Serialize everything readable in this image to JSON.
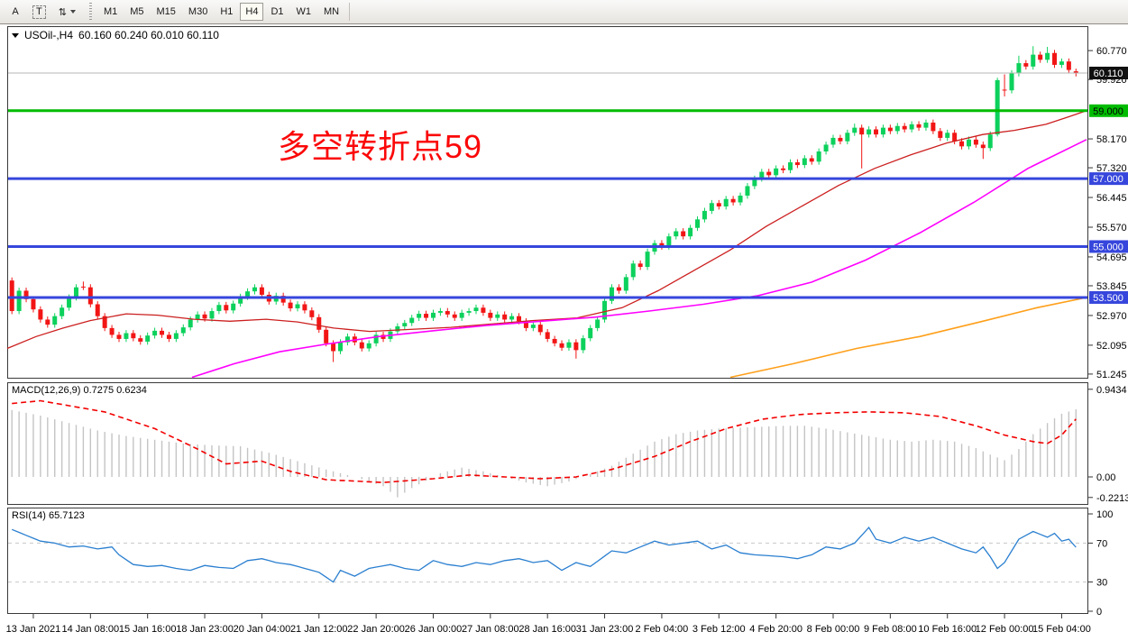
{
  "toolbar": {
    "tools": [
      {
        "id": "annotation-letter",
        "label": "A",
        "boxed": false
      },
      {
        "id": "text-label",
        "label": "T",
        "boxed": true
      },
      {
        "id": "object-arrange",
        "label": "⇅",
        "boxed": false,
        "caret": true
      }
    ],
    "timeframes": [
      "M1",
      "M5",
      "M15",
      "M30",
      "H1",
      "H4",
      "D1",
      "W1",
      "MN"
    ],
    "active_timeframe": "H4"
  },
  "chart": {
    "title": "USOil-,H4",
    "ohlc": "60.160 60.240 60.010 60.110"
  },
  "chart_data": {
    "type": "candlestick",
    "symbol": "USOil-",
    "timeframe": "H4",
    "annotation": {
      "text": "多空转折点59",
      "color": "#fb0808"
    },
    "colors": {
      "bull": "#0cd15c",
      "bear": "#f21515",
      "ma_fast": "#cc1f1f",
      "ma_mid": "#ff00ff",
      "ma_slow": "#ff9f1a",
      "level_blue": "#3646dc",
      "level_green": "#00bc00",
      "current_price_line": "#b6b6b6",
      "macd_hist": "#c4c4c4",
      "macd_signal": "#f20000",
      "rsi_line": "#2a7fd0",
      "rsi_levels": "#c8c8c8",
      "pane_border": "#3a3a3a"
    },
    "main_pane": {
      "ylim": [
        51.11,
        61.49
      ],
      "ticks": [
        "60.770",
        "59.920",
        "58.170",
        "57.320",
        "56.445",
        "55.570",
        "54.695",
        "53.845",
        "52.970",
        "52.095",
        "51.245"
      ],
      "badges": [
        {
          "text": "60.110",
          "price": 60.11,
          "bg": "#101010",
          "fg": "#ffffff"
        },
        {
          "text": "59.000",
          "price": 59.0,
          "bg": "#00bc00",
          "fg": "#000000"
        },
        {
          "text": "57.000",
          "price": 57.0,
          "bg": "#3646dc",
          "fg": "#ffffff"
        },
        {
          "text": "55.000",
          "price": 55.0,
          "bg": "#3646dc",
          "fg": "#ffffff"
        },
        {
          "text": "53.500",
          "price": 53.5,
          "bg": "#3646dc",
          "fg": "#ffffff"
        }
      ],
      "levels": [
        {
          "price": 60.11,
          "color": "#b6b6b6",
          "width": 1,
          "name": "current-price-line"
        },
        {
          "price": 59.0,
          "color": "#00bc00",
          "width": 3,
          "name": "level-59"
        },
        {
          "price": 57.0,
          "color": "#3646dc",
          "width": 3,
          "name": "level-57"
        },
        {
          "price": 55.0,
          "color": "#3646dc",
          "width": 3,
          "name": "level-55"
        },
        {
          "price": 53.5,
          "color": "#3646dc",
          "width": 3,
          "name": "level-53.5"
        }
      ]
    },
    "candles": {
      "first_open": 54.0,
      "default_wick": 0.09,
      "closes": [
        53.1,
        53.7,
        53.45,
        53.15,
        52.85,
        52.7,
        52.95,
        53.2,
        53.5,
        53.8,
        53.8,
        53.3,
        52.95,
        52.6,
        52.4,
        52.28,
        52.45,
        52.3,
        52.2,
        52.38,
        52.52,
        52.4,
        52.28,
        52.45,
        52.62,
        52.85,
        53.0,
        52.88,
        53.1,
        53.28,
        53.12,
        53.32,
        53.52,
        53.68,
        53.8,
        53.58,
        53.38,
        53.55,
        53.35,
        53.18,
        53.3,
        53.12,
        52.92,
        52.55,
        52.15,
        51.92,
        52.18,
        52.35,
        52.18,
        52.0,
        52.15,
        52.4,
        52.28,
        52.5,
        52.65,
        52.75,
        52.9,
        53.02,
        52.9,
        53.05,
        53.1,
        53.0,
        52.9,
        53.05,
        53.1,
        53.2,
        53.05,
        52.9,
        53.0,
        52.85,
        52.95,
        52.8,
        52.6,
        52.7,
        52.48,
        52.28,
        52.15,
        52.02,
        52.18,
        51.95,
        52.3,
        52.6,
        52.85,
        53.4,
        53.8,
        53.7,
        54.1,
        54.5,
        54.4,
        54.85,
        55.1,
        55.0,
        55.3,
        55.45,
        55.3,
        55.55,
        55.8,
        56.05,
        56.28,
        56.18,
        56.4,
        56.3,
        56.5,
        56.78,
        57.0,
        57.2,
        57.1,
        57.3,
        57.25,
        57.48,
        57.4,
        57.6,
        57.5,
        57.8,
        58.0,
        58.2,
        58.1,
        58.35,
        58.5,
        58.3,
        58.45,
        58.3,
        58.5,
        58.4,
        58.55,
        58.45,
        58.6,
        58.5,
        58.65,
        58.4,
        58.2,
        58.35,
        58.1,
        57.95,
        58.15,
        58.0,
        57.9,
        58.3,
        59.9,
        59.6,
        60.1,
        60.4,
        60.3,
        60.65,
        60.5,
        60.7,
        60.35,
        60.45,
        60.2,
        60.11
      ],
      "overrides": {
        "10": {
          "o": 53.82,
          "c": 53.8,
          "h": 53.97,
          "l": 53.72
        },
        "45": {
          "l": 51.6
        },
        "79": {
          "l": 51.7
        },
        "118": {
          "h": 58.62
        },
        "119": {
          "l": 57.3
        },
        "136": {
          "l": 57.58
        },
        "138": {
          "o": 58.3,
          "h": 59.97,
          "l": 58.24
        },
        "139": {
          "o": 59.62,
          "c": 59.6,
          "h": 60.07,
          "l": 59.42
        },
        "141": {
          "h": 60.62
        },
        "143": {
          "h": 60.9
        },
        "145": {
          "h": 60.88
        },
        "149": {
          "o": 60.16,
          "h": 60.24,
          "l": 60.01,
          "c": 60.11
        }
      }
    },
    "moving_averages": [
      {
        "name": "ma-fast-red",
        "color": "#cc1f1f",
        "width": 1.3,
        "points": [
          [
            8,
            52.0
          ],
          [
            40,
            52.35
          ],
          [
            70,
            52.6
          ],
          [
            100,
            52.82
          ],
          [
            140,
            53.02
          ],
          [
            175,
            52.98
          ],
          [
            215,
            52.86
          ],
          [
            255,
            52.8
          ],
          [
            295,
            52.86
          ],
          [
            330,
            52.78
          ],
          [
            370,
            52.6
          ],
          [
            410,
            52.5
          ],
          [
            455,
            52.56
          ],
          [
            500,
            52.62
          ],
          [
            545,
            52.72
          ],
          [
            590,
            52.82
          ],
          [
            640,
            52.9
          ],
          [
            690,
            53.2
          ],
          [
            730,
            53.7
          ],
          [
            770,
            54.3
          ],
          [
            810,
            54.9
          ],
          [
            850,
            55.6
          ],
          [
            890,
            56.2
          ],
          [
            930,
            56.8
          ],
          [
            970,
            57.3
          ],
          [
            1010,
            57.7
          ],
          [
            1050,
            58.05
          ],
          [
            1090,
            58.3
          ],
          [
            1125,
            58.42
          ],
          [
            1160,
            58.6
          ],
          [
            1185,
            58.82
          ],
          [
            1205,
            59.0
          ]
        ]
      },
      {
        "name": "ma-mid-magenta",
        "color": "#ff00ff",
        "width": 1.6,
        "points": [
          [
            213,
            51.15
          ],
          [
            260,
            51.55
          ],
          [
            310,
            51.9
          ],
          [
            360,
            52.12
          ],
          [
            420,
            52.35
          ],
          [
            480,
            52.52
          ],
          [
            540,
            52.68
          ],
          [
            600,
            52.8
          ],
          [
            660,
            52.92
          ],
          [
            720,
            53.1
          ],
          [
            780,
            53.3
          ],
          [
            840,
            53.55
          ],
          [
            900,
            53.95
          ],
          [
            960,
            54.6
          ],
          [
            1020,
            55.4
          ],
          [
            1080,
            56.3
          ],
          [
            1140,
            57.3
          ],
          [
            1205,
            58.15
          ]
        ]
      },
      {
        "name": "ma-slow-orange",
        "color": "#ff9f1a",
        "width": 1.6,
        "points": [
          [
            810,
            51.15
          ],
          [
            880,
            51.55
          ],
          [
            950,
            52.0
          ],
          [
            1020,
            52.35
          ],
          [
            1090,
            52.8
          ],
          [
            1150,
            53.2
          ],
          [
            1205,
            53.5
          ]
        ]
      }
    ],
    "macd": {
      "label": "MACD(12,26,9) 0.7275 0.6234",
      "value_main": 0.7275,
      "value_signal": 0.6234,
      "ylim": [
        -0.301,
        1.019
      ],
      "ticks": [
        [
          "0.9434",
          0.9434
        ],
        [
          "0.00",
          0.0
        ],
        [
          "-0.2213",
          -0.2213
        ]
      ],
      "histogram_waypoints": [
        [
          0,
          0.72
        ],
        [
          4,
          0.66
        ],
        [
          8,
          0.58
        ],
        [
          12,
          0.5
        ],
        [
          16,
          0.44
        ],
        [
          20,
          0.4
        ],
        [
          24,
          0.36
        ],
        [
          28,
          0.34
        ],
        [
          32,
          0.33
        ],
        [
          36,
          0.26
        ],
        [
          40,
          0.17
        ],
        [
          44,
          0.08
        ],
        [
          48,
          0.0
        ],
        [
          52,
          -0.1
        ],
        [
          54,
          -0.22
        ],
        [
          56,
          -0.12
        ],
        [
          58,
          -0.04
        ],
        [
          60,
          0.04
        ],
        [
          63,
          0.1
        ],
        [
          66,
          0.06
        ],
        [
          69,
          0.0
        ],
        [
          72,
          -0.06
        ],
        [
          75,
          -0.1
        ],
        [
          78,
          -0.05
        ],
        [
          81,
          0.03
        ],
        [
          84,
          0.12
        ],
        [
          87,
          0.25
        ],
        [
          90,
          0.38
        ],
        [
          93,
          0.46
        ],
        [
          96,
          0.5
        ],
        [
          99,
          0.52
        ],
        [
          102,
          0.53
        ],
        [
          105,
          0.54
        ],
        [
          108,
          0.55
        ],
        [
          111,
          0.55
        ],
        [
          114,
          0.52
        ],
        [
          117,
          0.48
        ],
        [
          120,
          0.44
        ],
        [
          123,
          0.4
        ],
        [
          126,
          0.38
        ],
        [
          129,
          0.4
        ],
        [
          132,
          0.38
        ],
        [
          135,
          0.31
        ],
        [
          137,
          0.24
        ],
        [
          139,
          0.18
        ],
        [
          141,
          0.3
        ],
        [
          143,
          0.46
        ],
        [
          145,
          0.58
        ],
        [
          147,
          0.68
        ],
        [
          149,
          0.7275
        ]
      ],
      "signal_waypoints": [
        [
          0,
          0.79
        ],
        [
          4,
          0.82
        ],
        [
          13,
          0.7
        ],
        [
          20,
          0.52
        ],
        [
          26,
          0.3
        ],
        [
          30,
          0.14
        ],
        [
          35,
          0.17
        ],
        [
          39,
          0.06
        ],
        [
          44,
          -0.03
        ],
        [
          52,
          -0.06
        ],
        [
          59,
          -0.02
        ],
        [
          64,
          0.02
        ],
        [
          69,
          0.0
        ],
        [
          74,
          -0.02
        ],
        [
          79,
          0.0
        ],
        [
          84,
          0.08
        ],
        [
          90,
          0.22
        ],
        [
          95,
          0.38
        ],
        [
          100,
          0.52
        ],
        [
          105,
          0.62
        ],
        [
          110,
          0.67
        ],
        [
          115,
          0.69
        ],
        [
          120,
          0.7
        ],
        [
          125,
          0.69
        ],
        [
          130,
          0.65
        ],
        [
          135,
          0.55
        ],
        [
          139,
          0.45
        ],
        [
          143,
          0.38
        ],
        [
          145,
          0.36
        ],
        [
          147,
          0.45
        ],
        [
          149,
          0.6234
        ]
      ]
    },
    "rsi": {
      "label": "RSI(14) 65.7123",
      "value": 65.7123,
      "ylim": [
        -2.8,
        106.5
      ],
      "ticks": [
        [
          "100",
          100
        ],
        [
          "70",
          70
        ],
        [
          "30",
          30
        ],
        [
          "0",
          0
        ]
      ],
      "levels": [
        70,
        30
      ],
      "waypoints": [
        [
          0,
          84
        ],
        [
          2,
          78
        ],
        [
          4,
          72
        ],
        [
          6,
          70
        ],
        [
          8,
          66
        ],
        [
          10,
          67
        ],
        [
          12,
          64
        ],
        [
          14,
          66
        ],
        [
          15,
          58
        ],
        [
          17,
          48
        ],
        [
          19,
          46
        ],
        [
          21,
          47
        ],
        [
          23,
          44
        ],
        [
          25,
          42
        ],
        [
          27,
          47
        ],
        [
          29,
          45
        ],
        [
          31,
          44
        ],
        [
          33,
          52
        ],
        [
          35,
          54
        ],
        [
          37,
          50
        ],
        [
          39,
          48
        ],
        [
          41,
          44
        ],
        [
          43,
          40
        ],
        [
          45,
          30
        ],
        [
          46,
          42
        ],
        [
          48,
          36
        ],
        [
          50,
          44
        ],
        [
          53,
          48
        ],
        [
          55,
          44
        ],
        [
          57,
          42
        ],
        [
          59,
          52
        ],
        [
          61,
          48
        ],
        [
          63,
          46
        ],
        [
          65,
          50
        ],
        [
          67,
          48
        ],
        [
          69,
          52
        ],
        [
          71,
          54
        ],
        [
          73,
          50
        ],
        [
          75,
          52
        ],
        [
          77,
          42
        ],
        [
          79,
          50
        ],
        [
          81,
          46
        ],
        [
          84,
          62
        ],
        [
          86,
          60
        ],
        [
          88,
          66
        ],
        [
          90,
          72
        ],
        [
          92,
          68
        ],
        [
          94,
          70
        ],
        [
          96,
          72
        ],
        [
          98,
          64
        ],
        [
          100,
          68
        ],
        [
          102,
          60
        ],
        [
          104,
          58
        ],
        [
          106,
          57
        ],
        [
          108,
          56
        ],
        [
          110,
          54
        ],
        [
          112,
          58
        ],
        [
          114,
          66
        ],
        [
          116,
          64
        ],
        [
          118,
          70
        ],
        [
          120,
          86
        ],
        [
          121,
          74
        ],
        [
          123,
          70
        ],
        [
          125,
          76
        ],
        [
          127,
          72
        ],
        [
          129,
          76
        ],
        [
          131,
          70
        ],
        [
          133,
          64
        ],
        [
          135,
          60
        ],
        [
          136,
          66
        ],
        [
          137,
          56
        ],
        [
          138,
          44
        ],
        [
          139,
          50
        ],
        [
          141,
          74
        ],
        [
          143,
          82
        ],
        [
          145,
          76
        ],
        [
          146,
          80
        ],
        [
          147,
          72
        ],
        [
          148,
          74
        ],
        [
          149,
          65.7123
        ]
      ]
    },
    "x_axis": {
      "labels": [
        "13 Jan 2021",
        "14 Jan 08:00",
        "15 Jan 16:00",
        "18 Jan 23:00",
        "20 Jan 04:00",
        "21 Jan 12:00",
        "22 Jan 20:00",
        "26 Jan 00:00",
        "27 Jan 08:00",
        "28 Jan 16:00",
        "31 Jan 23:00",
        "2 Feb 04:00",
        "3 Feb 12:00",
        "4 Feb 20:00",
        "8 Feb 00:00",
        "9 Feb 08:00",
        "10 Feb 16:00",
        "12 Feb 00:00",
        "15 Feb 04:00"
      ],
      "first_label_bar": 3,
      "bars_per_label": 8
    }
  }
}
